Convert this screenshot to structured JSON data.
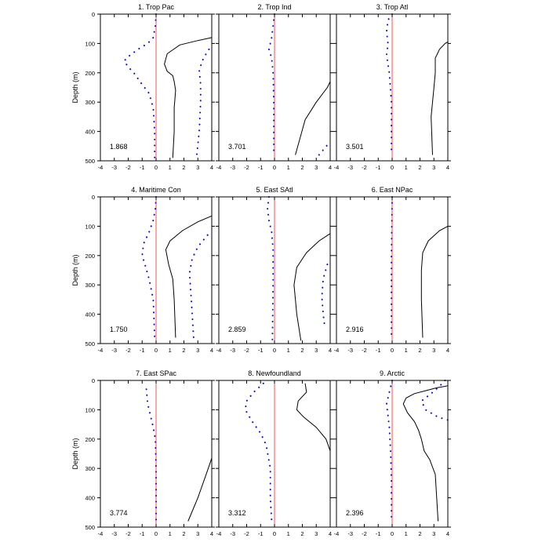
{
  "figure": {
    "ylabel": "Depth (m)",
    "xlim": [
      -4,
      4
    ],
    "ylim": [
      0,
      500
    ],
    "x_ticks": [
      -4,
      -3,
      -2,
      -1,
      0,
      1,
      2,
      3,
      4
    ],
    "y_ticks": [
      0,
      100,
      200,
      300,
      400,
      500
    ],
    "colors": {
      "zero_line": "#ff4d4d",
      "dots": "#0000ff",
      "curve": "#000000",
      "axis": "#000000"
    }
  },
  "chart_data": [
    {
      "type": "line",
      "title": "1. Trop Pac",
      "stat": "1.868",
      "solid": [
        [
          1.2,
          490
        ],
        [
          1.3,
          400
        ],
        [
          1.3,
          320
        ],
        [
          1.4,
          260
        ],
        [
          1.3,
          230
        ],
        [
          1.2,
          210
        ],
        [
          0.8,
          195
        ],
        [
          0.6,
          170
        ],
        [
          0.8,
          135
        ],
        [
          1.7,
          105
        ],
        [
          3.0,
          90
        ],
        [
          4.0,
          80
        ]
      ],
      "dotted_left": [
        [
          0.0,
          0
        ],
        [
          -0.05,
          40
        ],
        [
          -0.2,
          80
        ],
        [
          -0.6,
          100
        ],
        [
          -1.3,
          120
        ],
        [
          -2.0,
          145
        ],
        [
          -2.3,
          160
        ],
        [
          -2.0,
          180
        ],
        [
          -1.6,
          200
        ],
        [
          -1.0,
          240
        ],
        [
          -0.5,
          270
        ],
        [
          -0.2,
          320
        ],
        [
          -0.1,
          400
        ],
        [
          -0.1,
          490
        ]
      ],
      "dotted_right": [
        [
          3.8,
          120
        ],
        [
          3.4,
          150
        ],
        [
          3.1,
          190
        ],
        [
          3.2,
          240
        ],
        [
          3.2,
          300
        ],
        [
          3.1,
          400
        ],
        [
          2.9,
          490
        ]
      ]
    },
    {
      "type": "line",
      "title": "2. Trop Ind",
      "stat": "3.701",
      "solid": [
        [
          1.5,
          480
        ],
        [
          2.2,
          360
        ],
        [
          3.0,
          300
        ],
        [
          3.8,
          250
        ],
        [
          4.0,
          230
        ]
      ],
      "dotted_left": [
        [
          0.0,
          0
        ],
        [
          -0.1,
          40
        ],
        [
          -0.2,
          80
        ],
        [
          -0.4,
          120
        ],
        [
          -0.2,
          150
        ],
        [
          -0.1,
          200
        ],
        [
          -0.05,
          300
        ],
        [
          -0.05,
          480
        ]
      ],
      "dotted_right": [
        [
          3.2,
          480
        ],
        [
          3.9,
          440
        ]
      ]
    },
    {
      "type": "line",
      "title": "3. Trop Atl",
      "stat": "3.501",
      "solid": [
        [
          2.9,
          480
        ],
        [
          2.8,
          350
        ],
        [
          3.0,
          250
        ],
        [
          3.1,
          200
        ],
        [
          3.1,
          150
        ],
        [
          3.4,
          120
        ],
        [
          3.8,
          100
        ],
        [
          4.0,
          95
        ]
      ],
      "dotted_left": [
        [
          0.0,
          0
        ],
        [
          -0.3,
          20
        ],
        [
          -0.4,
          60
        ],
        [
          -0.3,
          100
        ],
        [
          -0.4,
          140
        ],
        [
          -0.2,
          200
        ],
        [
          -0.05,
          300
        ],
        [
          -0.05,
          480
        ]
      ],
      "dotted_right": []
    },
    {
      "type": "line",
      "title": "4. Maritime Con",
      "stat": "1.750",
      "solid": [
        [
          1.4,
          480
        ],
        [
          1.3,
          350
        ],
        [
          1.2,
          280
        ],
        [
          0.9,
          230
        ],
        [
          0.7,
          180
        ],
        [
          1.0,
          150
        ],
        [
          1.9,
          115
        ],
        [
          3.0,
          85
        ],
        [
          4.0,
          65
        ]
      ],
      "dotted_left": [
        [
          0.0,
          0
        ],
        [
          -0.05,
          40
        ],
        [
          -0.2,
          80
        ],
        [
          -0.5,
          120
        ],
        [
          -0.9,
          160
        ],
        [
          -1.0,
          200
        ],
        [
          -0.8,
          230
        ],
        [
          -0.5,
          280
        ],
        [
          -0.2,
          350
        ],
        [
          -0.1,
          480
        ]
      ],
      "dotted_right": [
        [
          3.7,
          130
        ],
        [
          3.0,
          170
        ],
        [
          2.6,
          210
        ],
        [
          2.4,
          260
        ],
        [
          2.5,
          330
        ],
        [
          2.6,
          400
        ],
        [
          2.7,
          480
        ]
      ]
    },
    {
      "type": "line",
      "title": "5. East SAtl",
      "stat": "2.859",
      "solid": [
        [
          1.9,
          490
        ],
        [
          1.6,
          400
        ],
        [
          1.4,
          300
        ],
        [
          1.6,
          240
        ],
        [
          2.3,
          190
        ],
        [
          3.2,
          150
        ],
        [
          4.0,
          125
        ]
      ],
      "dotted_left": [
        [
          -0.4,
          0
        ],
        [
          -0.5,
          40
        ],
        [
          -0.4,
          80
        ],
        [
          -0.2,
          120
        ],
        [
          -0.1,
          180
        ],
        [
          -0.1,
          300
        ],
        [
          -0.15,
          490
        ]
      ],
      "dotted_right": [
        [
          3.8,
          230
        ],
        [
          3.5,
          280
        ],
        [
          3.4,
          340
        ],
        [
          3.5,
          400
        ],
        [
          3.6,
          440
        ]
      ]
    },
    {
      "type": "line",
      "title": "6. East NPac",
      "stat": "2.916",
      "solid": [
        [
          2.2,
          480
        ],
        [
          2.1,
          350
        ],
        [
          2.1,
          250
        ],
        [
          2.2,
          190
        ],
        [
          2.6,
          150
        ],
        [
          3.4,
          115
        ],
        [
          4.0,
          100
        ]
      ],
      "dotted_left": [
        [
          0.0,
          0
        ],
        [
          -0.02,
          100
        ],
        [
          -0.05,
          200
        ],
        [
          -0.05,
          300
        ],
        [
          -0.05,
          400
        ],
        [
          -0.05,
          480
        ]
      ],
      "dotted_right": []
    },
    {
      "type": "line",
      "title": "7. East SPac",
      "stat": "3.774",
      "solid": [
        [
          2.3,
          480
        ],
        [
          3.0,
          400
        ],
        [
          3.6,
          320
        ],
        [
          4.0,
          265
        ]
      ],
      "dotted_left": [
        [
          -0.7,
          30
        ],
        [
          -0.6,
          80
        ],
        [
          -0.4,
          120
        ],
        [
          -0.2,
          160
        ],
        [
          -0.05,
          200
        ],
        [
          0.0,
          300
        ],
        [
          0.0,
          480
        ]
      ],
      "dotted_right": []
    },
    {
      "type": "line",
      "title": "8. Newfoundland",
      "stat": "3.312",
      "solid": [
        [
          2.2,
          10
        ],
        [
          2.3,
          40
        ],
        [
          1.7,
          70
        ],
        [
          1.6,
          100
        ],
        [
          2.1,
          125
        ],
        [
          3.0,
          160
        ],
        [
          3.7,
          200
        ],
        [
          4.0,
          240
        ],
        [
          4.0,
          290
        ]
      ],
      "dotted_left": [
        [
          -0.8,
          10
        ],
        [
          -1.5,
          40
        ],
        [
          -2.0,
          70
        ],
        [
          -2.1,
          100
        ],
        [
          -1.6,
          140
        ],
        [
          -1.0,
          180
        ],
        [
          -0.6,
          220
        ],
        [
          -0.3,
          300
        ],
        [
          -0.3,
          400
        ],
        [
          -0.2,
          480
        ]
      ],
      "dotted_right": []
    },
    {
      "type": "line",
      "title": "9. Arctic",
      "stat": "2.396",
      "solid": [
        [
          3.3,
          480
        ],
        [
          3.2,
          400
        ],
        [
          3.1,
          320
        ],
        [
          2.7,
          270
        ],
        [
          2.3,
          240
        ],
        [
          2.1,
          200
        ],
        [
          1.9,
          170
        ],
        [
          1.6,
          140
        ],
        [
          1.1,
          110
        ],
        [
          0.8,
          80
        ],
        [
          1.0,
          60
        ],
        [
          1.6,
          45
        ],
        [
          2.4,
          35
        ],
        [
          3.2,
          25
        ],
        [
          3.8,
          20
        ],
        [
          4.0,
          18
        ]
      ],
      "dotted_left": [
        [
          0.0,
          0
        ],
        [
          -0.2,
          40
        ],
        [
          -0.4,
          80
        ],
        [
          -0.3,
          120
        ],
        [
          -0.2,
          160
        ],
        [
          -0.1,
          250
        ],
        [
          -0.05,
          350
        ],
        [
          -0.05,
          480
        ]
      ],
      "dotted_right": [
        [
          3.8,
          0
        ],
        [
          3.4,
          20
        ],
        [
          2.8,
          45
        ],
        [
          2.1,
          70
        ],
        [
          2.4,
          100
        ],
        [
          3.3,
          125
        ],
        [
          4.0,
          135
        ]
      ]
    }
  ]
}
